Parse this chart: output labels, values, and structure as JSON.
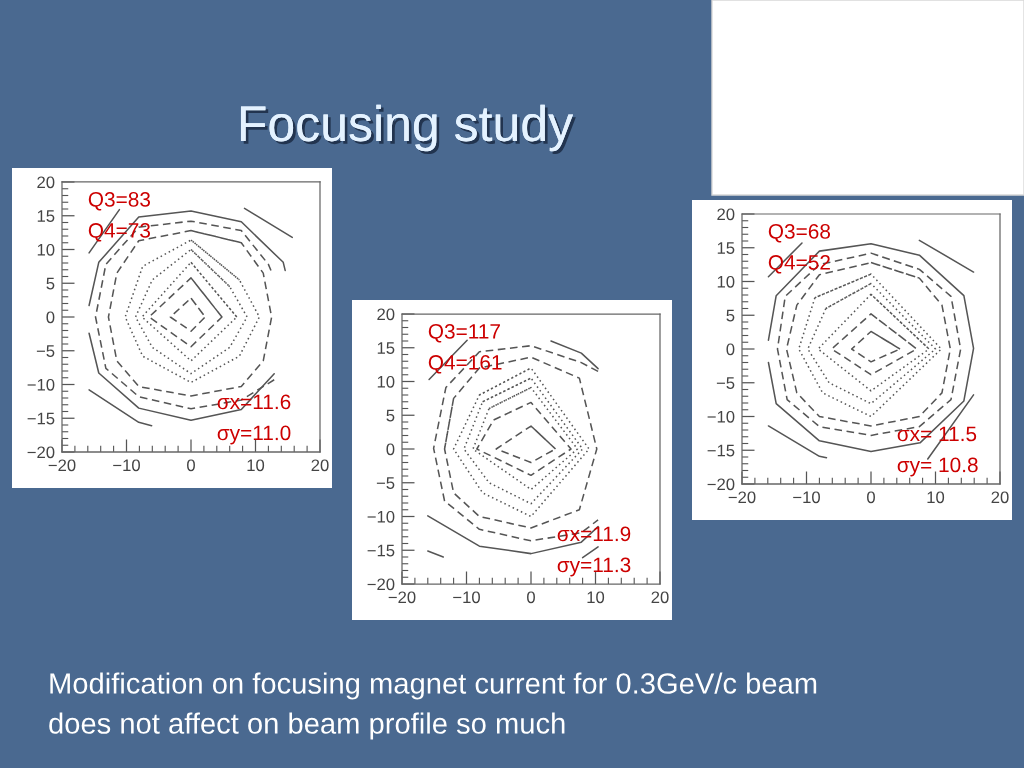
{
  "chart_data": [
    {
      "type": "other",
      "title": "Focusing study",
      "annotations": [
        "Modification on focusing magnet current for 0.3GeV/c beam",
        "does not affect on beam profile so much"
      ]
    },
    {
      "type": "line",
      "color": "#555555",
      "xlim": [
        -20,
        20
      ],
      "ylim": [
        -20,
        20
      ],
      "xticks": [
        {
          "value": -20,
          "label": "−20"
        },
        {
          "value": -18,
          "label": null
        },
        {
          "value": -16,
          "label": null
        },
        {
          "value": -14,
          "label": null
        },
        {
          "value": -12,
          "label": null
        },
        {
          "value": -10,
          "label": "−10"
        },
        {
          "value": -8,
          "label": null
        },
        {
          "value": -6,
          "label": null
        },
        {
          "value": -4,
          "label": null
        },
        {
          "value": -2,
          "label": null
        },
        0,
        {
          "value": 2,
          "label": null
        },
        {
          "value": 4,
          "label": null
        },
        {
          "value": 6,
          "label": null
        },
        {
          "value": 8,
          "label": null
        },
        10,
        {
          "value": 12,
          "label": null
        },
        {
          "value": 14,
          "label": null
        },
        {
          "value": 16,
          "label": null
        },
        {
          "value": 18,
          "label": null
        },
        20
      ],
      "yticks": [
        {
          "value": -20,
          "label": "−20"
        },
        {
          "value": -19,
          "label": null
        },
        {
          "value": -18,
          "label": null
        },
        {
          "value": -17,
          "label": null
        },
        {
          "value": -16,
          "label": null
        },
        {
          "value": -15,
          "label": "−15"
        },
        {
          "value": -14,
          "label": null
        },
        {
          "value": -13,
          "label": null
        },
        {
          "value": -12,
          "label": null
        },
        {
          "value": -11,
          "label": null
        },
        {
          "value": -10,
          "label": "−10"
        },
        {
          "value": -9,
          "label": null
        },
        {
          "value": -8,
          "label": null
        },
        {
          "value": -7,
          "label": null
        },
        {
          "value": -6,
          "label": null
        },
        {
          "value": -5,
          "label": "−5"
        },
        {
          "value": -4,
          "label": null
        },
        {
          "value": -3,
          "label": null
        },
        {
          "value": -2,
          "label": null
        },
        {
          "value": -1,
          "label": null
        },
        0,
        {
          "value": 1,
          "label": null
        },
        {
          "value": 2,
          "label": null
        },
        {
          "value": 3,
          "label": null
        },
        {
          "value": 4,
          "label": null
        },
        5,
        {
          "value": 6,
          "label": null
        },
        {
          "value": 7,
          "label": null
        },
        {
          "value": 8,
          "label": null
        },
        {
          "value": 9,
          "label": null
        },
        10,
        {
          "value": 11,
          "label": null
        },
        {
          "value": 12,
          "label": null
        },
        {
          "value": 13,
          "label": null
        },
        {
          "value": 14,
          "label": null
        },
        15,
        {
          "value": 16,
          "label": null
        },
        {
          "value": 17,
          "label": null
        },
        {
          "value": 18,
          "label": null
        },
        {
          "value": 19,
          "label": null
        },
        20
      ],
      "annotations": [
        "Q3=83",
        "Q4=73",
        "σx=11.6",
        "σy=11.0"
      ],
      "series": [
        {
          "line_style": "solid",
          "x": [
            12.9,
            7.8,
            0,
            -8.1,
            -14.3,
            -15.8
          ],
          "values": [
            -8.4,
            -13.7,
            -15.3,
            -13.5,
            -8.3,
            -2.4
          ]
        },
        {
          "line_style": "solid",
          "x": [
            -15.8,
            -14.3,
            -8.1,
            0,
            7.8,
            14.3,
            14.6
          ],
          "values": [
            1.7,
            8.1,
            14.8,
            15.7,
            14.1,
            8.1,
            6.9
          ]
        },
        {
          "line_style": "solid",
          "x": [
            -15.8,
            -11.1
          ],
          "values": [
            9.5,
            15.9
          ]
        },
        {
          "line_style": "solid",
          "x": [
            8.3,
            15.7
          ],
          "values": [
            16.1,
            11.8
          ]
        },
        {
          "line_style": "solid",
          "x": [
            -15.8,
            -8.1,
            -6.1
          ],
          "values": [
            -10.8,
            -15.6,
            -16.1
          ]
        },
        {
          "line_style": "dashed",
          "x": [
            12.9,
            7.8,
            0,
            -8.1,
            -13.2,
            -14.8,
            -13.2,
            -8.1,
            0,
            7.8,
            12.0,
            12.4
          ],
          "values": [
            -9.3,
            -12.3,
            -13.6,
            -11.8,
            -7.6,
            0,
            7.8,
            13.3,
            14.2,
            12.8,
            7.8,
            6.9
          ]
        },
        {
          "line_style": "dashed",
          "x": [
            0,
            7.8,
            11.2,
            12.5,
            11.2,
            7.8,
            0,
            -8.1,
            -11.5,
            -12.8,
            -11.5,
            -8.1,
            0,
            7.8
          ],
          "values": [
            12.8,
            11.0,
            6.5,
            0,
            -6.5,
            -10.3,
            -11.7,
            -10.3,
            -6.5,
            0,
            6.5,
            11.3,
            12.8,
            11.0
          ]
        },
        {
          "line_style": "dotted",
          "x": [
            0,
            7.5,
            10.6,
            7.5,
            0,
            -7.5,
            -10.2,
            -7.5,
            0,
            7.5
          ],
          "values": [
            11.4,
            5.5,
            0,
            -5.8,
            -9.7,
            -5.8,
            0,
            7.5,
            11.4,
            5.5
          ]
        },
        {
          "line_style": "dotted",
          "x": [
            0,
            6.0,
            8.7,
            6.0,
            0,
            -6.0,
            -8.6,
            -6.0,
            0,
            6.0
          ],
          "values": [
            10.0,
            4.5,
            0,
            -4.5,
            -8.4,
            -4.5,
            0,
            5.5,
            10.0,
            4.5
          ]
        },
        {
          "line_style": "dotted",
          "x": [
            0,
            7.1,
            0,
            -7.6,
            0,
            7.1
          ],
          "values": [
            8.1,
            0,
            -6.5,
            0,
            8.1,
            0
          ]
        },
        {
          "line_style": "dashed",
          "x": [
            0,
            4.8,
            0,
            -6.5,
            0,
            4.8
          ],
          "values": [
            5.8,
            0,
            -4.4,
            0,
            5.8,
            0
          ]
        },
        {
          "line_style": "dashed",
          "x": [
            0,
            2.2,
            0,
            -3.2,
            0,
            2.2
          ],
          "values": [
            2.8,
            0,
            -2.1,
            0,
            2.8,
            0
          ]
        }
      ]
    },
    {
      "type": "line",
      "color": "#555555",
      "xlim": [
        -20,
        20
      ],
      "ylim": [
        -20,
        20
      ],
      "xticks": [
        {
          "value": -20,
          "label": "−20"
        },
        {
          "value": -18,
          "label": null
        },
        {
          "value": -16,
          "label": null
        },
        {
          "value": -14,
          "label": null
        },
        {
          "value": -12,
          "label": null
        },
        {
          "value": -10,
          "label": "−10"
        },
        {
          "value": -8,
          "label": null
        },
        {
          "value": -6,
          "label": null
        },
        {
          "value": -4,
          "label": null
        },
        {
          "value": -2,
          "label": null
        },
        0,
        {
          "value": 2,
          "label": null
        },
        {
          "value": 4,
          "label": null
        },
        {
          "value": 6,
          "label": null
        },
        {
          "value": 8,
          "label": null
        },
        10,
        {
          "value": 12,
          "label": null
        },
        {
          "value": 14,
          "label": null
        },
        {
          "value": 16,
          "label": null
        },
        {
          "value": 18,
          "label": null
        },
        20
      ],
      "yticks": [
        {
          "value": -20,
          "label": "−20"
        },
        {
          "value": -19,
          "label": null
        },
        {
          "value": -18,
          "label": null
        },
        {
          "value": -17,
          "label": null
        },
        {
          "value": -16,
          "label": null
        },
        {
          "value": -15,
          "label": "−15"
        },
        {
          "value": -14,
          "label": null
        },
        {
          "value": -13,
          "label": null
        },
        {
          "value": -12,
          "label": null
        },
        {
          "value": -11,
          "label": null
        },
        {
          "value": -10,
          "label": "−10"
        },
        {
          "value": -9,
          "label": null
        },
        {
          "value": -8,
          "label": null
        },
        {
          "value": -7,
          "label": null
        },
        {
          "value": -6,
          "label": null
        },
        {
          "value": -5,
          "label": "−5"
        },
        {
          "value": -4,
          "label": null
        },
        {
          "value": -3,
          "label": null
        },
        {
          "value": -2,
          "label": null
        },
        {
          "value": -1,
          "label": null
        },
        0,
        {
          "value": 1,
          "label": null
        },
        {
          "value": 2,
          "label": null
        },
        {
          "value": 3,
          "label": null
        },
        {
          "value": 4,
          "label": null
        },
        5,
        {
          "value": 6,
          "label": null
        },
        {
          "value": 7,
          "label": null
        },
        {
          "value": 8,
          "label": null
        },
        {
          "value": 9,
          "label": null
        },
        10,
        {
          "value": 11,
          "label": null
        },
        {
          "value": 12,
          "label": null
        },
        {
          "value": 13,
          "label": null
        },
        {
          "value": 14,
          "label": null
        },
        15,
        {
          "value": 16,
          "label": null
        },
        {
          "value": 17,
          "label": null
        },
        {
          "value": 18,
          "label": null
        },
        {
          "value": 19,
          "label": null
        },
        20
      ],
      "annotations": [
        "Q3=117",
        "Q4=161",
        "σx=11.9",
        "σy=11.3"
      ],
      "series": [
        {
          "line_style": "solid",
          "x": [
            -16.0,
            -8.0,
            0,
            7.8,
            10.4
          ],
          "values": [
            -9.9,
            -14.4,
            -15.5,
            -13.8,
            -11.5
          ]
        },
        {
          "line_style": "solid",
          "x": [
            3.1,
            7.8,
            10.4
          ],
          "values": [
            16.0,
            14.2,
            11.9
          ]
        },
        {
          "line_style": "solid",
          "x": [
            -15.8,
            -9.9
          ],
          "values": [
            10.3,
            16.1
          ]
        },
        {
          "line_style": "solid",
          "x": [
            -16.0,
            -13.6
          ],
          "values": [
            -15.1,
            -16.0
          ]
        },
        {
          "line_style": "solid",
          "x": [
            10.4,
            8.0
          ],
          "values": [
            -14.5,
            -16.1
          ]
        },
        {
          "line_style": "dashed",
          "x": [
            10.4,
            7.8,
            0,
            -8.0,
            -13.2,
            -15.1,
            -13.4,
            -8.0,
            0,
            7.8,
            10.4
          ],
          "values": [
            11.5,
            12.8,
            15.3,
            14.4,
            9.1,
            0.1,
            -7.7,
            -11.9,
            -13.6,
            -12.4,
            -10.5
          ]
        },
        {
          "line_style": "dashed",
          "x": [
            -12.0,
            -13.4,
            -12.0,
            -8.0,
            0,
            7.5,
            10.2,
            7.5,
            0,
            -8.0,
            -12.0,
            -13.4
          ],
          "values": [
            7.5,
            0,
            -6.5,
            -10.0,
            -11.7,
            -9.0,
            0,
            10.5,
            13.6,
            12.0,
            7.5,
            0
          ]
        },
        {
          "line_style": "dotted",
          "x": [
            -8.0,
            0,
            9.0,
            0,
            -7.5,
            -12.0,
            -8.0,
            0
          ],
          "values": [
            8.0,
            12.0,
            0,
            -10.0,
            -6.5,
            0,
            8.0,
            12.0
          ]
        },
        {
          "line_style": "dotted",
          "x": [
            -7.5,
            0,
            8.0,
            0,
            -6.5,
            -10.4,
            -7.5,
            0
          ],
          "values": [
            7.0,
            10.5,
            0,
            -8.1,
            -5.0,
            0,
            7.0,
            10.5
          ]
        },
        {
          "line_style": "dotted",
          "x": [
            -6.5,
            0,
            7.2,
            0,
            -9.0,
            -6.5,
            0
          ],
          "values": [
            6.0,
            9.1,
            0,
            -6.0,
            0,
            6.0,
            9.1
          ]
        },
        {
          "line_style": "dashed",
          "x": [
            -5.8,
            0,
            6.2,
            0,
            -8.4,
            -5.8,
            0
          ],
          "values": [
            4.3,
            6.9,
            0,
            -3.9,
            0,
            4.3,
            6.9
          ]
        },
        {
          "line_style": "dashed",
          "x": [
            0,
            3.8,
            0,
            -5.4,
            0,
            3.8
          ],
          "values": [
            3.4,
            0,
            -2.0,
            0,
            3.4,
            0
          ]
        }
      ]
    },
    {
      "type": "line",
      "color": "#555555",
      "xlim": [
        -20,
        20
      ],
      "ylim": [
        -20,
        20
      ],
      "xticks": [
        {
          "value": -20,
          "label": "−20"
        },
        {
          "value": -18,
          "label": null
        },
        {
          "value": -16,
          "label": null
        },
        {
          "value": -14,
          "label": null
        },
        {
          "value": -12,
          "label": null
        },
        {
          "value": -10,
          "label": "−10"
        },
        {
          "value": -8,
          "label": null
        },
        {
          "value": -6,
          "label": null
        },
        {
          "value": -4,
          "label": null
        },
        {
          "value": -2,
          "label": null
        },
        0,
        {
          "value": 2,
          "label": null
        },
        {
          "value": 4,
          "label": null
        },
        {
          "value": 6,
          "label": null
        },
        {
          "value": 8,
          "label": null
        },
        10,
        {
          "value": 12,
          "label": null
        },
        {
          "value": 14,
          "label": null
        },
        {
          "value": 16,
          "label": null
        },
        {
          "value": 18,
          "label": null
        },
        20
      ],
      "yticks": [
        {
          "value": -20,
          "label": "−20"
        },
        {
          "value": -19,
          "label": null
        },
        {
          "value": -18,
          "label": null
        },
        {
          "value": -17,
          "label": null
        },
        {
          "value": -16,
          "label": null
        },
        {
          "value": -15,
          "label": "−15"
        },
        {
          "value": -14,
          "label": null
        },
        {
          "value": -13,
          "label": null
        },
        {
          "value": -12,
          "label": null
        },
        {
          "value": -11,
          "label": null
        },
        {
          "value": -10,
          "label": "−10"
        },
        {
          "value": -9,
          "label": null
        },
        {
          "value": -8,
          "label": null
        },
        {
          "value": -7,
          "label": null
        },
        {
          "value": -6,
          "label": null
        },
        {
          "value": -5,
          "label": "−5"
        },
        {
          "value": -4,
          "label": null
        },
        {
          "value": -3,
          "label": null
        },
        {
          "value": -2,
          "label": null
        },
        {
          "value": -1,
          "label": null
        },
        0,
        {
          "value": 1,
          "label": null
        },
        {
          "value": 2,
          "label": null
        },
        {
          "value": 3,
          "label": null
        },
        {
          "value": 4,
          "label": null
        },
        5,
        {
          "value": 6,
          "label": null
        },
        {
          "value": 7,
          "label": null
        },
        {
          "value": 8,
          "label": null
        },
        {
          "value": 9,
          "label": null
        },
        10,
        {
          "value": 11,
          "label": null
        },
        {
          "value": 12,
          "label": null
        },
        {
          "value": 13,
          "label": null
        },
        {
          "value": 14,
          "label": null
        },
        15,
        {
          "value": 16,
          "label": null
        },
        {
          "value": 17,
          "label": null
        },
        {
          "value": 18,
          "label": null
        },
        {
          "value": 19,
          "label": null
        },
        20
      ],
      "annotations": [
        "Q3=68",
        "Q4=52",
        "σx= 11.5",
        "σy= 10.8"
      ],
      "series": [
        {
          "line_style": "solid",
          "x": [
            -15.9,
            -14.7,
            -8.0,
            0,
            7.6,
            14.4,
            15.9,
            14.4,
            7.5,
            0,
            -8.0,
            -14.7,
            -15.9
          ],
          "values": [
            -2.0,
            -8.1,
            -13.6,
            -15.2,
            -13.9,
            -7.7,
            0.1,
            7.9,
            13.9,
            15.6,
            14.5,
            7.9,
            1.3
          ]
        },
        {
          "line_style": "solid",
          "x": [
            -15.9,
            -10.7
          ],
          "values": [
            10.7,
            15.7
          ]
        },
        {
          "line_style": "solid",
          "x": [
            7.5,
            15.9
          ],
          "values": [
            16.1,
            11.4
          ]
        },
        {
          "line_style": "solid",
          "x": [
            -15.9,
            -8.0,
            -6.9
          ],
          "values": [
            -11.4,
            -15.9,
            -16.1
          ]
        },
        {
          "line_style": "solid",
          "x": [
            15.9,
            8.8
          ],
          "values": [
            -6.8,
            -16.3
          ]
        },
        {
          "line_style": "dashed",
          "x": [
            0,
            7.5,
            12.4,
            13.9,
            12.4,
            7.5,
            0,
            -8.0,
            -13.0,
            -14.5,
            -13.3,
            -8.0,
            0,
            7.5
          ],
          "values": [
            14.2,
            11.8,
            7.8,
            0,
            -7.5,
            -11.5,
            -12.8,
            -11.5,
            -7.5,
            0,
            7.8,
            12.5,
            14.2,
            11.8
          ]
        },
        {
          "line_style": "dashed",
          "x": [
            0,
            7.5,
            11.0,
            12.3,
            11.0,
            7.5,
            0,
            -8.0,
            -11.5,
            -13.1,
            -11.5,
            -8.0,
            0,
            7.5
          ],
          "values": [
            12.8,
            10.5,
            6.5,
            0,
            -6.5,
            -10.0,
            -11.4,
            -10.0,
            -6.5,
            0,
            6.5,
            11.0,
            12.8,
            10.5
          ]
        },
        {
          "line_style": "dotted",
          "x": [
            -8.7,
            0,
            10.9,
            0,
            -7.5,
            -11.2,
            -8.7,
            0
          ],
          "values": [
            7.6,
            11.1,
            0,
            -10.0,
            -6.5,
            0,
            7.6,
            11.1
          ]
        },
        {
          "line_style": "dotted",
          "x": [
            -7.0,
            0,
            10.0,
            0,
            -6.5,
            -9.8,
            -7.0,
            0
          ],
          "values": [
            6.0,
            9.7,
            0,
            -8.1,
            -5.0,
            0,
            6.0,
            9.7
          ]
        },
        {
          "line_style": "dotted",
          "x": [
            0,
            9.0,
            0,
            -8.2,
            0,
            9.0
          ],
          "values": [
            8.1,
            0,
            -6.2,
            0,
            8.1,
            0
          ]
        },
        {
          "line_style": "dashed",
          "x": [
            0,
            7.1,
            0,
            -6.1,
            0,
            7.1
          ],
          "values": [
            5.2,
            0,
            -3.8,
            0,
            5.2,
            0
          ]
        },
        {
          "line_style": "dashed",
          "x": [
            0,
            4.5,
            0,
            -3.0,
            0,
            4.5
          ],
          "values": [
            2.6,
            0,
            -1.9,
            0,
            2.6,
            0
          ]
        }
      ]
    }
  ]
}
